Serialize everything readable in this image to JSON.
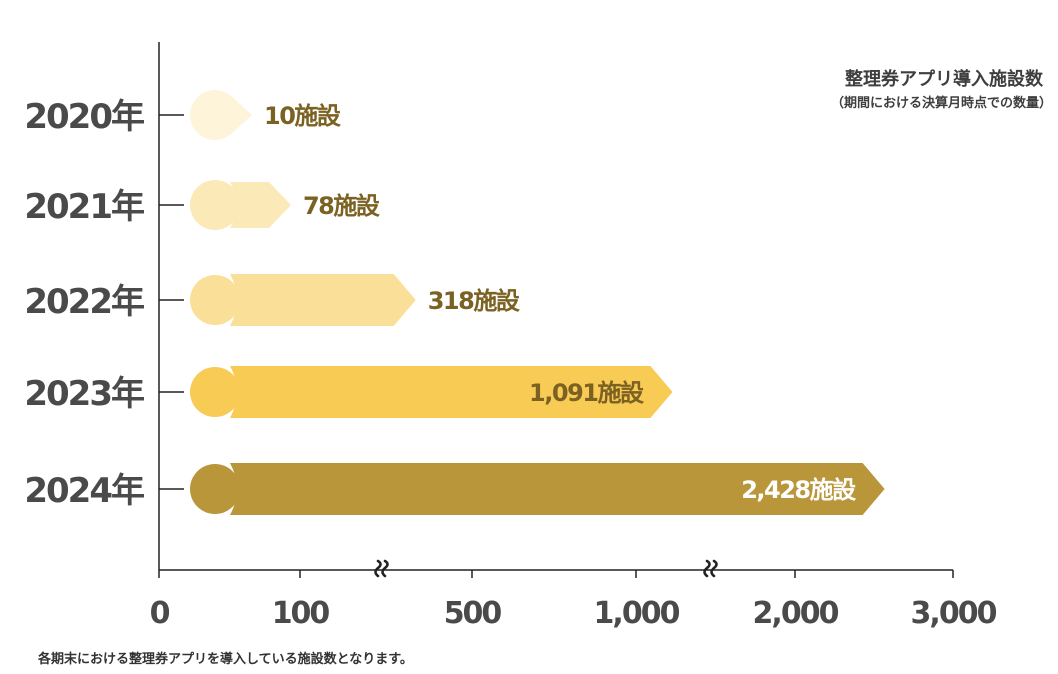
{
  "chart_data": {
    "type": "bar",
    "orientation": "horizontal",
    "title": "整理券アプリ導入施設数",
    "subtitle": "（期間における決算月時点での数量）",
    "categories": [
      "2020年",
      "2021年",
      "2022年",
      "2023年",
      "2024年"
    ],
    "values": [
      10,
      78,
      318,
      1091,
      2428
    ],
    "data_labels": [
      "10施設",
      "78施設",
      "318施設",
      "1,091施設",
      "2,428施設"
    ],
    "x_ticks": [
      0,
      100,
      500,
      1000,
      2000,
      3000
    ],
    "x_tick_labels": [
      "0",
      "100",
      "500",
      "1,000",
      "2,000",
      "3,000"
    ],
    "x_scale": "piecewise-linear with axis breaks between 100–500 and 1,000–2,000",
    "axis_break_symbol": "≈",
    "legend_position": "top-right",
    "grid": false,
    "colors": [
      "#FDF4D9",
      "#FCE9B8",
      "#FADF99",
      "#F8CB54",
      "#B9963A"
    ],
    "label_colors": [
      "#7B6223",
      "#7B6223",
      "#7B6223",
      "#7B6223",
      "#FFFFFF"
    ],
    "axis_color": "#222222"
  },
  "footnote": "各期末における整理券アプリを導入している施設数となります。"
}
